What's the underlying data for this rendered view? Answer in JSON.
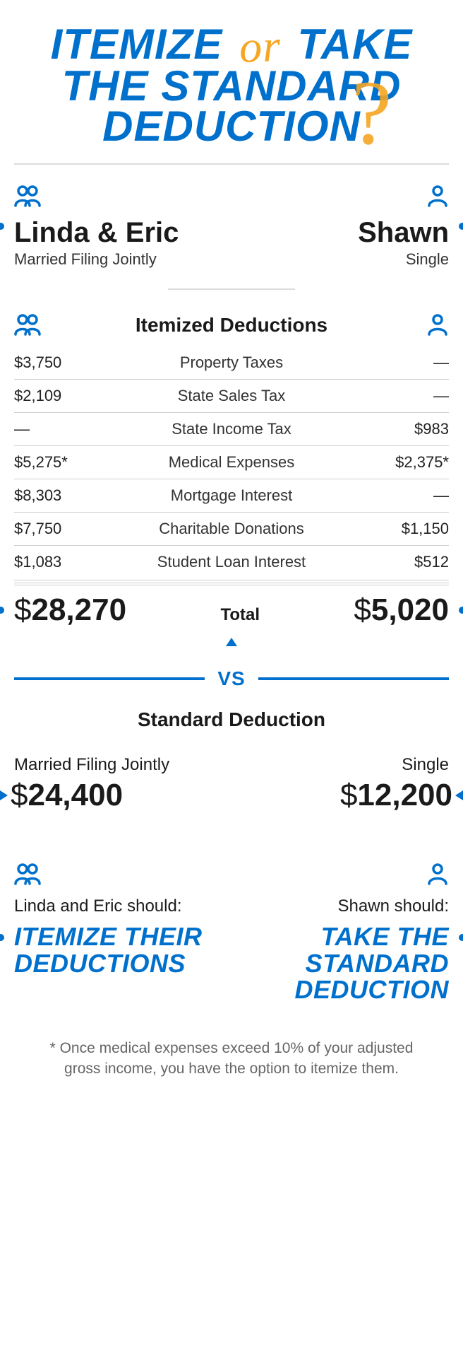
{
  "palette": {
    "blue": "#0070cd",
    "orange": "#f5a623",
    "text": "#1a1a1a",
    "rule": "#cfcfcf"
  },
  "title": {
    "line1_a": "ITEMIZE",
    "or": "or",
    "line1_b": "TAKE",
    "line2": "THE STANDARD",
    "line3": "DEDUCTION",
    "qmark": "?"
  },
  "profiles": {
    "left": {
      "name": "Linda & Eric",
      "status": "Married Filing Jointly",
      "icon": "couple"
    },
    "right": {
      "name": "Shawn",
      "status": "Single",
      "icon": "single"
    }
  },
  "itemized": {
    "heading": "Itemized Deductions",
    "rows": [
      {
        "left": "$3,750",
        "label": "Property Taxes",
        "right": "—"
      },
      {
        "left": "$2,109",
        "label": "State Sales Tax",
        "right": "—"
      },
      {
        "left": "—",
        "label": "State Income Tax",
        "right": "$983"
      },
      {
        "left": "$5,275*",
        "label": "Medical Expenses",
        "right": "$2,375*"
      },
      {
        "left": "$8,303",
        "label": "Mortgage Interest",
        "right": "—"
      },
      {
        "left": "$7,750",
        "label": "Charitable Donations",
        "right": "$1,150"
      },
      {
        "left": "$1,083",
        "label": "Student Loan Interest",
        "right": "$512"
      }
    ],
    "total_label": "Total",
    "total_left_prefix": "$",
    "total_left": "28,270",
    "total_right_prefix": "$",
    "total_right": "5,020"
  },
  "vs": "VS",
  "standard": {
    "heading": "Standard Deduction",
    "left_status": "Married Filing Jointly",
    "left_prefix": "$",
    "left_amount": "24,400",
    "right_status": "Single",
    "right_prefix": "$",
    "right_amount": "12,200"
  },
  "recommendation": {
    "left_who": "Linda and Eric should:",
    "left_answer": "ITEMIZE THEIR DEDUCTIONS",
    "right_who": "Shawn should:",
    "right_answer": "TAKE THE STANDARD DEDUCTION"
  },
  "footnote": "* Once medical expenses exceed 10% of your adjusted gross income, you have the option to itemize them."
}
